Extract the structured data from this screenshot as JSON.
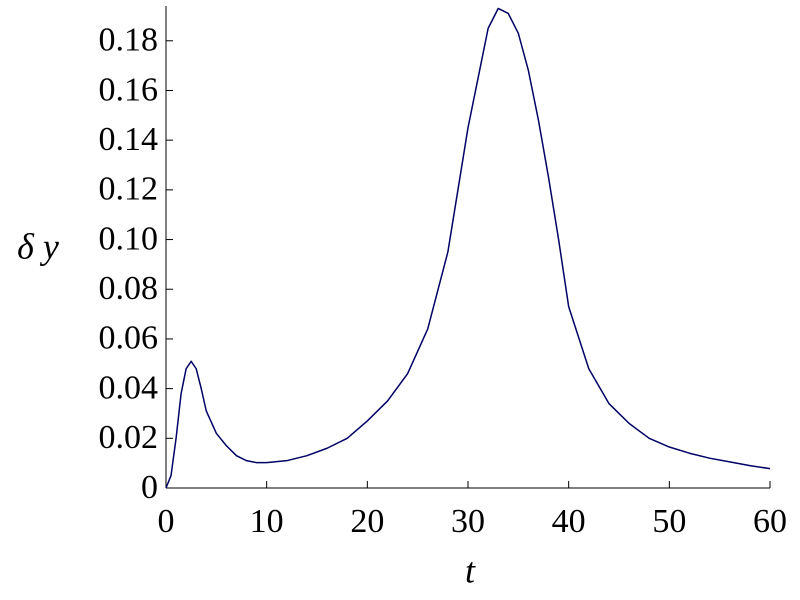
{
  "chart_data": {
    "type": "line",
    "x_label": "t",
    "y_label": "δ y",
    "x": [
      0,
      0.5,
      1,
      1.5,
      2,
      2.5,
      3,
      3.5,
      4,
      5,
      6,
      7,
      8,
      9,
      10,
      12,
      14,
      16,
      18,
      20,
      22,
      24,
      26,
      28,
      30,
      31,
      32,
      33,
      34,
      35,
      36,
      37,
      38,
      39,
      40,
      42,
      44,
      46,
      48,
      50,
      52,
      54,
      56,
      58,
      60
    ],
    "values": [
      0,
      0.005,
      0.02,
      0.038,
      0.048,
      0.051,
      0.048,
      0.04,
      0.031,
      0.022,
      0.017,
      0.013,
      0.011,
      0.0102,
      0.0102,
      0.011,
      0.013,
      0.016,
      0.02,
      0.027,
      0.035,
      0.046,
      0.064,
      0.095,
      0.145,
      0.165,
      0.185,
      0.193,
      0.191,
      0.183,
      0.168,
      0.148,
      0.125,
      0.1,
      0.073,
      0.048,
      0.034,
      0.026,
      0.02,
      0.0165,
      0.014,
      0.012,
      0.0105,
      0.009,
      0.0078
    ],
    "color": "#000066",
    "xlim": [
      0,
      60
    ],
    "xticks": [
      0,
      10,
      20,
      30,
      40,
      50,
      60
    ],
    "ylim": [
      0,
      0.194
    ],
    "yticks": [
      0,
      0.02,
      0.04,
      0.06,
      0.08,
      {
        "value": 0.1,
        "label": "0.10"
      },
      0.12,
      0.14,
      0.16,
      0.18
    ]
  }
}
